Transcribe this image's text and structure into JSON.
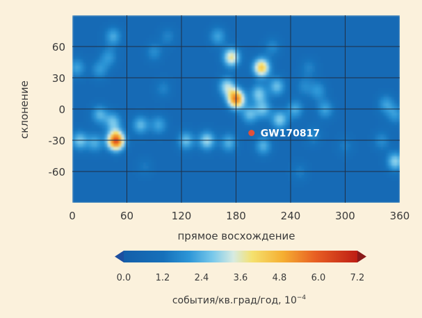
{
  "chart_data": {
    "type": "heatmap",
    "title": "",
    "xlabel": "прямое восхождение",
    "ylabel": "склонение",
    "xlim": [
      0,
      360
    ],
    "ylim": [
      -90,
      90
    ],
    "x_ticks": [
      "0",
      "60",
      "120",
      "180",
      "240",
      "300",
      "360"
    ],
    "y_ticks": [
      "60",
      "30",
      "0",
      "-30",
      "-60"
    ],
    "grid": true,
    "colormap": "jet",
    "colors": {
      "low": "#1466b0",
      "mid": "#e6eed3",
      "high": "#c82413",
      "grid": "#223344",
      "marker": "#e0503a",
      "label": "#ffffff"
    },
    "hotspots": [
      {
        "ra": 48,
        "dec": -30,
        "value": 6.3
      },
      {
        "ra": 180,
        "dec": 10,
        "value": 5.6
      },
      {
        "ra": 175,
        "dec": 50,
        "value": 3.8
      },
      {
        "ra": 208,
        "dec": 40,
        "value": 4.4
      },
      {
        "ra": 45,
        "dec": -12,
        "value": 2.6
      },
      {
        "ra": 30,
        "dec": -5,
        "value": 2.4
      },
      {
        "ra": 8,
        "dec": -30,
        "value": 2.7
      },
      {
        "ra": 25,
        "dec": -32,
        "value": 2.3
      },
      {
        "ra": 148,
        "dec": -30,
        "value": 3.0
      },
      {
        "ra": 125,
        "dec": -30,
        "value": 2.6
      },
      {
        "ra": 170,
        "dec": 22,
        "value": 3.0
      },
      {
        "ra": 205,
        "dec": 15,
        "value": 2.7
      },
      {
        "ra": 195,
        "dec": -5,
        "value": 2.5
      },
      {
        "ra": 172,
        "dec": -32,
        "value": 2.4
      },
      {
        "ra": 210,
        "dec": -35,
        "value": 2.4
      },
      {
        "ra": 228,
        "dec": -10,
        "value": 2.8
      },
      {
        "ra": 225,
        "dec": 22,
        "value": 2.6
      },
      {
        "ra": 245,
        "dec": 0,
        "value": 2.3
      },
      {
        "ra": 210,
        "dec": 0,
        "value": 2.5
      },
      {
        "ra": 75,
        "dec": -15,
        "value": 2.5
      },
      {
        "ra": 95,
        "dec": -15,
        "value": 2.2
      },
      {
        "ra": 5,
        "dec": 40,
        "value": 2.2
      },
      {
        "ra": 30,
        "dec": 38,
        "value": 2.0
      },
      {
        "ra": 40,
        "dec": 50,
        "value": 2.0
      },
      {
        "ra": 45,
        "dec": 70,
        "value": 2.3
      },
      {
        "ra": 90,
        "dec": 55,
        "value": 1.8
      },
      {
        "ra": 100,
        "dec": 20,
        "value": 1.6
      },
      {
        "ra": 160,
        "dec": 70,
        "value": 2.2
      },
      {
        "ra": 105,
        "dec": 70,
        "value": 1.6
      },
      {
        "ra": 220,
        "dec": 60,
        "value": 1.7
      },
      {
        "ra": 260,
        "dec": 40,
        "value": 1.6
      },
      {
        "ra": 270,
        "dec": 18,
        "value": 2.0
      },
      {
        "ra": 278,
        "dec": 0,
        "value": 2.2
      },
      {
        "ra": 255,
        "dec": 22,
        "value": 1.7
      },
      {
        "ra": 300,
        "dec": -35,
        "value": 1.5
      },
      {
        "ra": 345,
        "dec": 5,
        "value": 2.1
      },
      {
        "ra": 355,
        "dec": -5,
        "value": 2.0
      },
      {
        "ra": 355,
        "dec": -50,
        "value": 2.9
      },
      {
        "ra": 340,
        "dec": -30,
        "value": 1.8
      },
      {
        "ra": 265,
        "dec": -25,
        "value": 1.7
      },
      {
        "ra": 250,
        "dec": -60,
        "value": 1.5
      },
      {
        "ra": 80,
        "dec": -55,
        "value": 1.4
      }
    ],
    "marker": {
      "label": "GW170817",
      "ra": 197,
      "dec": -23
    },
    "colorbar": {
      "ticks": [
        "0.0",
        "1.2",
        "2.4",
        "3.6",
        "4.8",
        "6.0",
        "7.2"
      ],
      "min": 0,
      "max": 7.2,
      "label_text": "события/кв.град/год, 10",
      "label_exponent": "−4"
    }
  }
}
